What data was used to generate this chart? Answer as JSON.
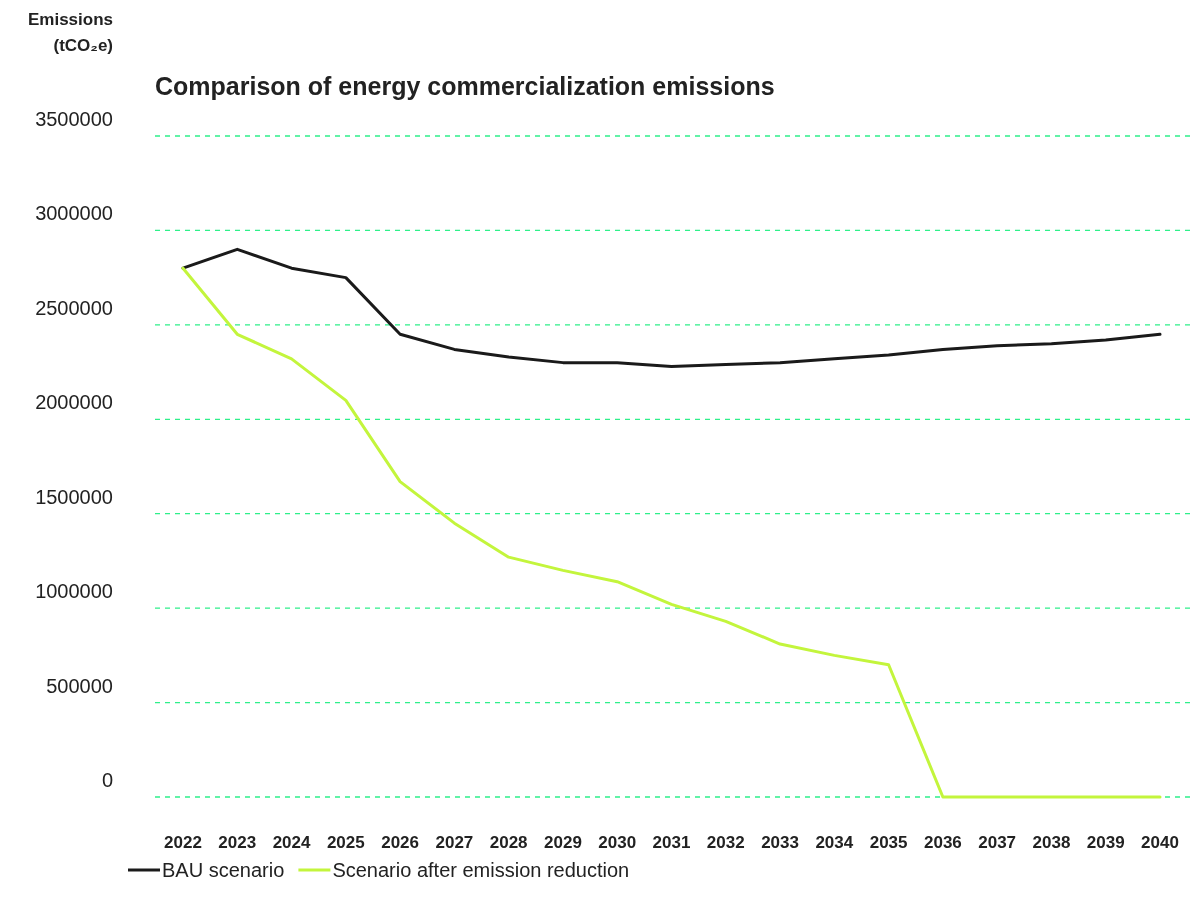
{
  "chart_data": {
    "type": "line",
    "title": "Comparison of energy commercialization emissions",
    "ylabel": "Emissions (tCO₂e)",
    "categories": [
      "2022",
      "2023",
      "2024",
      "2025",
      "2026",
      "2027",
      "2028",
      "2029",
      "2030",
      "2031",
      "2032",
      "2033",
      "2034",
      "2035",
      "2036",
      "2037",
      "2038",
      "2039",
      "2040"
    ],
    "series": [
      {
        "name": "BAU scenario",
        "color": "#1a1a1a",
        "values": [
          2800000,
          2900000,
          2800000,
          2750000,
          2450000,
          2370000,
          2330000,
          2300000,
          2300000,
          2280000,
          2290000,
          2300000,
          2320000,
          2340000,
          2370000,
          2390000,
          2400000,
          2420000,
          2450000
        ]
      },
      {
        "name": "Scenario after emission reduction",
        "color": "#c3f53c",
        "values": [
          2800000,
          2450000,
          2320000,
          2100000,
          1670000,
          1450000,
          1270000,
          1200000,
          1140000,
          1020000,
          930000,
          810000,
          750000,
          700000,
          0,
          0,
          0,
          0,
          0
        ]
      }
    ],
    "ylim": [
      0,
      3500000
    ],
    "yticks": [
      0,
      500000,
      1000000,
      1500000,
      2000000,
      2500000,
      3000000,
      3500000
    ],
    "grid": "y",
    "legend": "bottom",
    "marker": "none",
    "line_style": "solid"
  }
}
